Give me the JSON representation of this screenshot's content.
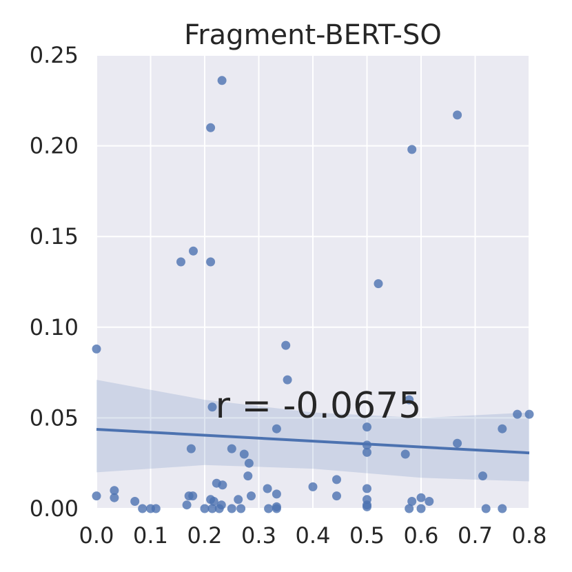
{
  "chart_data": {
    "type": "scatter",
    "title": "Fragment-BERT-SO",
    "xlabel": "",
    "ylabel": "",
    "xlim": [
      0.0,
      0.8
    ],
    "ylim": [
      0.0,
      0.25
    ],
    "xticks": [
      "0.0",
      "0.1",
      "0.2",
      "0.3",
      "0.4",
      "0.5",
      "0.6",
      "0.7",
      "0.8"
    ],
    "yticks": [
      "0.00",
      "0.05",
      "0.10",
      "0.15",
      "0.20",
      "0.25"
    ],
    "grid": true,
    "annotation": "r = -0.0675",
    "regression": {
      "line": [
        [
          0.0,
          0.0437
        ],
        [
          0.8,
          0.0307
        ]
      ],
      "ci_upper": [
        [
          0.0,
          0.071
        ],
        [
          0.2,
          0.06
        ],
        [
          0.4,
          0.053
        ],
        [
          0.6,
          0.05
        ],
        [
          0.8,
          0.053
        ]
      ],
      "ci_lower": [
        [
          0.0,
          0.02
        ],
        [
          0.2,
          0.024
        ],
        [
          0.4,
          0.022
        ],
        [
          0.6,
          0.017
        ],
        [
          0.8,
          0.015
        ]
      ]
    },
    "colors": {
      "points": "#4c72b0",
      "line": "#4c72b0",
      "band": "#4c72b0",
      "background": "#eaeaf2",
      "grid": "#ffffff"
    },
    "points": [
      [
        0.232,
        0.236
      ],
      [
        0.211,
        0.21
      ],
      [
        0.667,
        0.217
      ],
      [
        0.583,
        0.198
      ],
      [
        0.179,
        0.142
      ],
      [
        0.156,
        0.136
      ],
      [
        0.211,
        0.136
      ],
      [
        0.521,
        0.124
      ],
      [
        0.0,
        0.088
      ],
      [
        0.35,
        0.09
      ],
      [
        0.353,
        0.071
      ],
      [
        0.214,
        0.056
      ],
      [
        0.578,
        0.06
      ],
      [
        0.778,
        0.052
      ],
      [
        0.8,
        0.052
      ],
      [
        0.5,
        0.045
      ],
      [
        0.333,
        0.044
      ],
      [
        0.75,
        0.044
      ],
      [
        0.5,
        0.035
      ],
      [
        0.667,
        0.036
      ],
      [
        0.25,
        0.033
      ],
      [
        0.175,
        0.033
      ],
      [
        0.5,
        0.031
      ],
      [
        0.273,
        0.03
      ],
      [
        0.571,
        0.03
      ],
      [
        0.282,
        0.025
      ],
      [
        0.28,
        0.018
      ],
      [
        0.714,
        0.018
      ],
      [
        0.444,
        0.016
      ],
      [
        0.222,
        0.014
      ],
      [
        0.4,
        0.012
      ],
      [
        0.233,
        0.013
      ],
      [
        0.316,
        0.011
      ],
      [
        0.5,
        0.011
      ],
      [
        0.033,
        0.01
      ],
      [
        0.333,
        0.008
      ],
      [
        0.0,
        0.007
      ],
      [
        0.171,
        0.007
      ],
      [
        0.178,
        0.007
      ],
      [
        0.286,
        0.007
      ],
      [
        0.444,
        0.007
      ],
      [
        0.033,
        0.006
      ],
      [
        0.211,
        0.005
      ],
      [
        0.262,
        0.005
      ],
      [
        0.5,
        0.005
      ],
      [
        0.6,
        0.006
      ],
      [
        0.071,
        0.004
      ],
      [
        0.217,
        0.004
      ],
      [
        0.583,
        0.004
      ],
      [
        0.615,
        0.004
      ],
      [
        0.167,
        0.002
      ],
      [
        0.231,
        0.002
      ],
      [
        0.5,
        0.002
      ],
      [
        0.085,
        0.0
      ],
      [
        0.1,
        0.0
      ],
      [
        0.11,
        0.0
      ],
      [
        0.2,
        0.0
      ],
      [
        0.214,
        0.0
      ],
      [
        0.227,
        0.0
      ],
      [
        0.25,
        0.0
      ],
      [
        0.267,
        0.0
      ],
      [
        0.318,
        0.0
      ],
      [
        0.333,
        0.0
      ],
      [
        0.333,
        0.001
      ],
      [
        0.5,
        0.001
      ],
      [
        0.578,
        0.0
      ],
      [
        0.6,
        0.0
      ],
      [
        0.72,
        0.0
      ],
      [
        0.75,
        0.0
      ]
    ]
  }
}
